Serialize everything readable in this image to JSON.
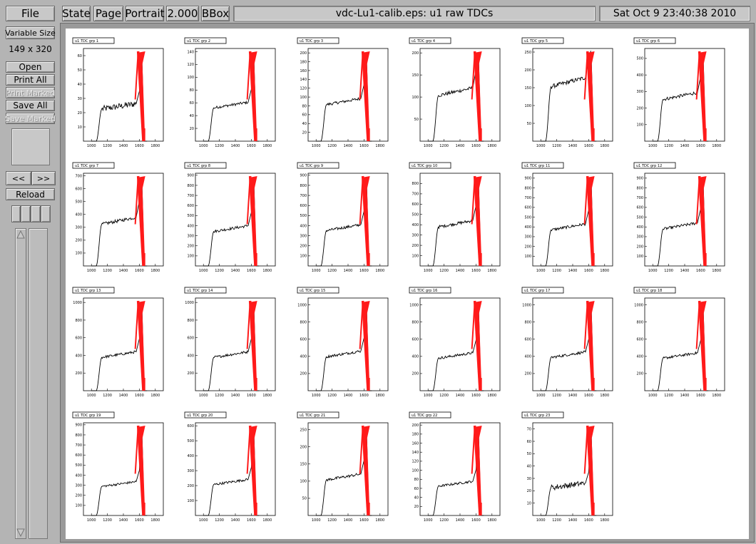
{
  "menu": {
    "file": "File",
    "state": "State",
    "page": "Page",
    "orientation": "Portrait",
    "magnification": "2.000",
    "bbox": "BBox"
  },
  "title": "vdc-Lu1-calib.eps: u1 raw TDCs",
  "date": "Sat Oct  9 23:40:38 2010",
  "sidebar": {
    "variable_size": "Variable Size",
    "page_size": "149 x 320",
    "open": "Open",
    "print_all": "Print All",
    "print_marked": "Print Marked",
    "save_all": "Save All",
    "save_marked": "Save Marked",
    "prev": "<<",
    "next": ">>",
    "reload": "Reload"
  },
  "chart_data": {
    "type": "line",
    "x_ticks": [
      "1000",
      "1200",
      "1400",
      "1600",
      "1800"
    ],
    "xlim": [
      900,
      1900
    ],
    "panels": [
      {
        "title": "u1 TDC grp 1",
        "ymax": 65,
        "yticks": [
          10,
          20,
          30,
          40,
          50,
          60
        ],
        "plateau": 25,
        "peak": 62
      },
      {
        "title": "u1 TDC grp 2",
        "ymax": 145,
        "yticks": [
          20,
          40,
          60,
          80,
          100,
          120,
          140
        ],
        "plateau": 58,
        "peak": 140
      },
      {
        "title": "u1 TDC grp 3",
        "ymax": 210,
        "yticks": [
          20,
          40,
          60,
          80,
          100,
          120,
          140,
          160,
          180,
          200
        ],
        "plateau": 92,
        "peak": 200
      },
      {
        "title": "u1 TDC grp 4",
        "ymax": 210,
        "yticks": [
          50,
          100,
          150,
          200
        ],
        "plateau": 115,
        "peak": 205
      },
      {
        "title": "u1 TDC grp 5",
        "ymax": 260,
        "yticks": [
          50,
          100,
          150,
          200,
          250
        ],
        "plateau": 170,
        "peak": 255
      },
      {
        "title": "u1 TDC grp 6",
        "ymax": 560,
        "yticks": [
          100,
          200,
          300,
          400,
          500
        ],
        "plateau": 280,
        "peak": 550
      },
      {
        "title": "u1 TDC grp 7",
        "ymax": 720,
        "yticks": [
          100,
          200,
          300,
          400,
          500,
          600,
          700
        ],
        "plateau": 360,
        "peak": 700
      },
      {
        "title": "u1 TDC grp 8",
        "ymax": 920,
        "yticks": [
          100,
          200,
          300,
          400,
          500,
          600,
          700,
          800,
          900
        ],
        "plateau": 380,
        "peak": 900
      },
      {
        "title": "u1 TDC grp 9",
        "ymax": 920,
        "yticks": [
          100,
          200,
          300,
          400,
          500,
          600,
          700,
          800,
          900
        ],
        "plateau": 390,
        "peak": 900
      },
      {
        "title": "u1 TDC grp 10",
        "ymax": 900,
        "yticks": [
          100,
          200,
          300,
          400,
          500,
          600,
          700,
          800
        ],
        "plateau": 420,
        "peak": 880
      },
      {
        "title": "u1 TDC grp 11",
        "ymax": 950,
        "yticks": [
          100,
          200,
          300,
          400,
          500,
          600,
          700,
          800,
          900
        ],
        "plateau": 410,
        "peak": 930
      },
      {
        "title": "u1 TDC grp 12",
        "ymax": 950,
        "yticks": [
          100,
          200,
          300,
          400,
          500,
          600,
          700,
          800,
          900
        ],
        "plateau": 420,
        "peak": 930
      },
      {
        "title": "u1 TDC grp 13",
        "ymax": 1050,
        "yticks": [
          200,
          400,
          600,
          800,
          1000
        ],
        "plateau": 420,
        "peak": 1020
      },
      {
        "title": "u1 TDC grp 14",
        "ymax": 1050,
        "yticks": [
          200,
          400,
          600,
          800,
          1000
        ],
        "plateau": 420,
        "peak": 1020
      },
      {
        "title": "u1 TDC grp 15",
        "ymax": 1080,
        "yticks": [
          200,
          400,
          600,
          800,
          1000
        ],
        "plateau": 440,
        "peak": 1050
      },
      {
        "title": "u1 TDC grp 16",
        "ymax": 1080,
        "yticks": [
          200,
          400,
          600,
          800,
          1000
        ],
        "plateau": 420,
        "peak": 1050
      },
      {
        "title": "u1 TDC grp 17",
        "ymax": 1080,
        "yticks": [
          200,
          400,
          600,
          800,
          1000
        ],
        "plateau": 430,
        "peak": 1050
      },
      {
        "title": "u1 TDC grp 18",
        "ymax": 1080,
        "yticks": [
          200,
          400,
          600,
          800,
          1000
        ],
        "plateau": 420,
        "peak": 1050
      },
      {
        "title": "u1 TDC grp 19",
        "ymax": 920,
        "yticks": [
          100,
          200,
          300,
          400,
          500,
          600,
          700,
          800,
          900
        ],
        "plateau": 320,
        "peak": 900
      },
      {
        "title": "u1 TDC grp 20",
        "ymax": 620,
        "yticks": [
          100,
          200,
          300,
          400,
          500,
          600
        ],
        "plateau": 230,
        "peak": 600
      },
      {
        "title": "u1 TDC grp 21",
        "ymax": 270,
        "yticks": [
          50,
          100,
          150,
          200,
          250
        ],
        "plateau": 115,
        "peak": 260
      },
      {
        "title": "u1 TDC grp 22",
        "ymax": 205,
        "yticks": [
          20,
          40,
          60,
          80,
          100,
          120,
          140,
          160,
          180,
          200
        ],
        "plateau": 72,
        "peak": 200
      },
      {
        "title": "u1 TDC grp 23",
        "ymax": 75,
        "yticks": [
          10,
          20,
          30,
          40,
          50,
          60,
          70
        ],
        "plateau": 25,
        "peak": 72
      }
    ]
  }
}
